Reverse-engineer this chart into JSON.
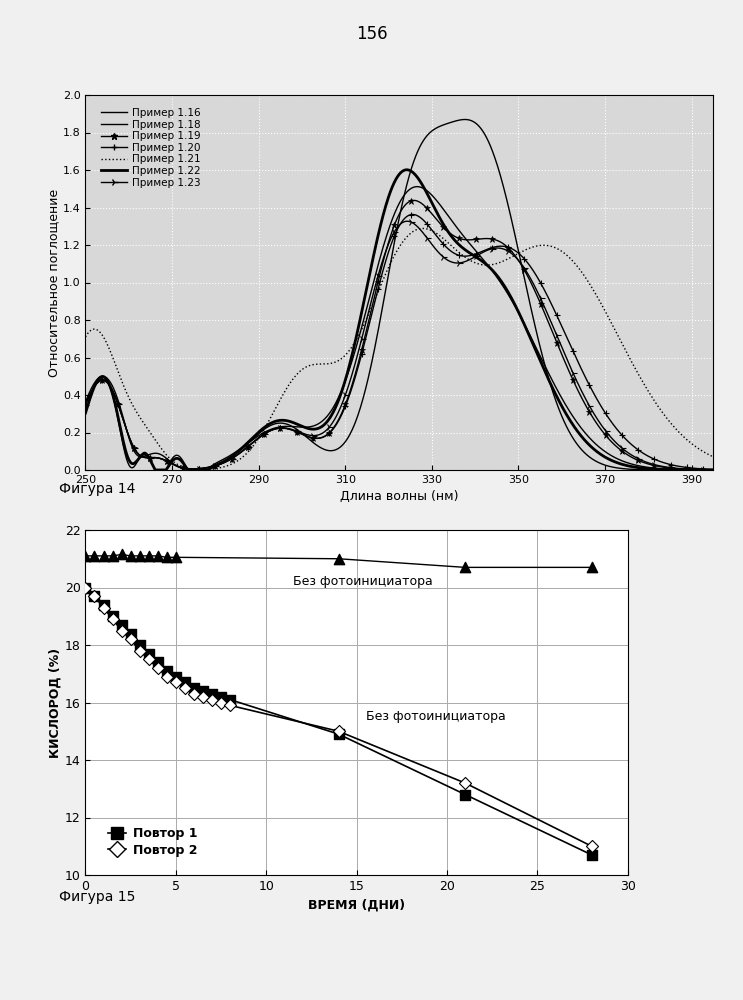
{
  "page_number": "156",
  "fig14": {
    "ylabel": "Относительное поглощение",
    "xlabel": "Длина волны (нм)",
    "figcaption": "Фигура 14",
    "xlim": [
      250,
      395
    ],
    "ylim": [
      0,
      2.0
    ],
    "xticks": [
      250,
      270,
      290,
      310,
      330,
      350,
      370,
      390
    ],
    "yticks": [
      0,
      0.2,
      0.4,
      0.6,
      0.8,
      1.0,
      1.2,
      1.4,
      1.6,
      1.8,
      2.0
    ],
    "legend_labels": [
      "Пример 1.16",
      "Пример 1.18",
      "Пример 1.19",
      "Пример 1.20",
      "Пример 1.21",
      "Пример 1.22",
      "Пример 1.23"
    ],
    "bg_color": "#d8d8d8"
  },
  "fig15": {
    "ylabel": "КИСЛОРОД (%)",
    "xlabel": "ВРЕМЯ (ДНИ)",
    "figcaption": "Фигура 15",
    "xlim": [
      0,
      30
    ],
    "ylim": [
      10,
      22
    ],
    "xticks": [
      0,
      5,
      10,
      15,
      20,
      25,
      30
    ],
    "yticks": [
      10,
      12,
      14,
      16,
      18,
      20,
      22
    ],
    "annotation1": "Без фотоинициатора",
    "annotation2": "Без фотоинициатора",
    "legend_label1": "Повтор 1",
    "legend_label2": "Повтор 2",
    "triangle_x": [
      0,
      0.5,
      1,
      1.5,
      2,
      2.5,
      3,
      3.5,
      4,
      4.5,
      5,
      14,
      21,
      28
    ],
    "triangle_y": [
      21.1,
      21.1,
      21.1,
      21.1,
      21.15,
      21.1,
      21.1,
      21.1,
      21.1,
      21.05,
      21.05,
      21.0,
      20.7,
      20.7
    ],
    "square_x": [
      0,
      0.5,
      1,
      1.5,
      2,
      2.5,
      3,
      3.5,
      4,
      4.5,
      5,
      5.5,
      6,
      6.5,
      7,
      7.5,
      8,
      14,
      21,
      28
    ],
    "square_y": [
      20.0,
      19.7,
      19.4,
      19.0,
      18.7,
      18.4,
      18.0,
      17.7,
      17.4,
      17.1,
      16.9,
      16.7,
      16.5,
      16.4,
      16.3,
      16.2,
      16.1,
      14.9,
      12.8,
      10.7
    ],
    "diamond_x": [
      0,
      0.5,
      1,
      1.5,
      2,
      2.5,
      3,
      3.5,
      4,
      4.5,
      5,
      5.5,
      6,
      6.5,
      7,
      7.5,
      8,
      14,
      21,
      28
    ],
    "diamond_y": [
      20.0,
      19.7,
      19.3,
      18.9,
      18.5,
      18.2,
      17.8,
      17.5,
      17.2,
      16.9,
      16.7,
      16.5,
      16.3,
      16.2,
      16.1,
      16.0,
      15.9,
      15.0,
      13.2,
      11.0
    ],
    "bg_color": "#ffffff"
  }
}
